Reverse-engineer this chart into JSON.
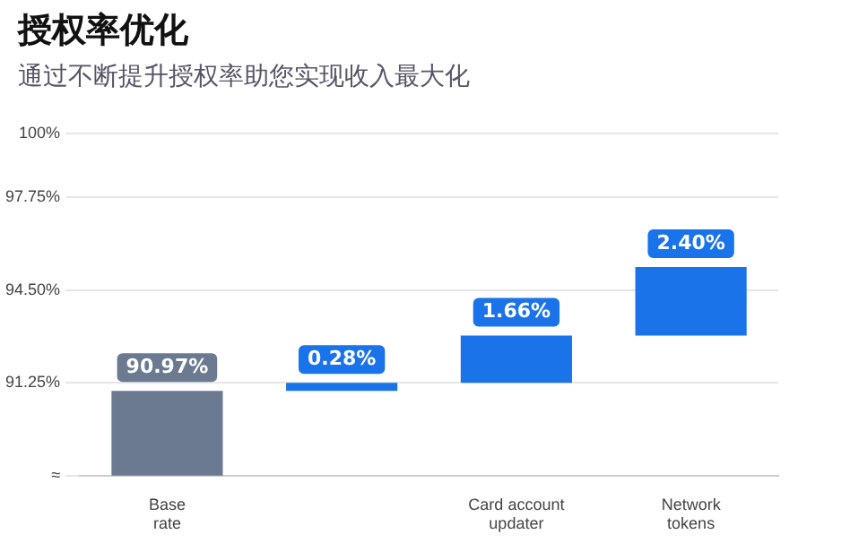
{
  "chart_data": {
    "type": "bar",
    "title": "授权率优化",
    "subtitle": "通过不断提升授权率助您实现收入最大化",
    "categories": [
      "Base rate",
      null,
      "Card account updater",
      "Network tokens"
    ],
    "values": [
      90.97,
      0.28,
      1.66,
      2.4
    ],
    "base": [
      null,
      90.97,
      91.25,
      92.91
    ],
    "colors": [
      "#6b7a90",
      "#1a73e8",
      "#1a73e8",
      "#1a73e8"
    ],
    "value_labels": [
      "90.97%",
      "0.28%",
      "1.66%",
      "2.40%"
    ],
    "ylim": [
      88,
      100
    ],
    "yticks": [
      {
        "value": 88,
        "label": "≈"
      },
      {
        "value": 91.25,
        "label": "91.25%"
      },
      {
        "value": 94.5,
        "label": "94.50%"
      },
      {
        "value": 97.75,
        "label": "97.75%"
      },
      {
        "value": 100,
        "label": "100%"
      }
    ],
    "grid": "y",
    "legend": false
  }
}
